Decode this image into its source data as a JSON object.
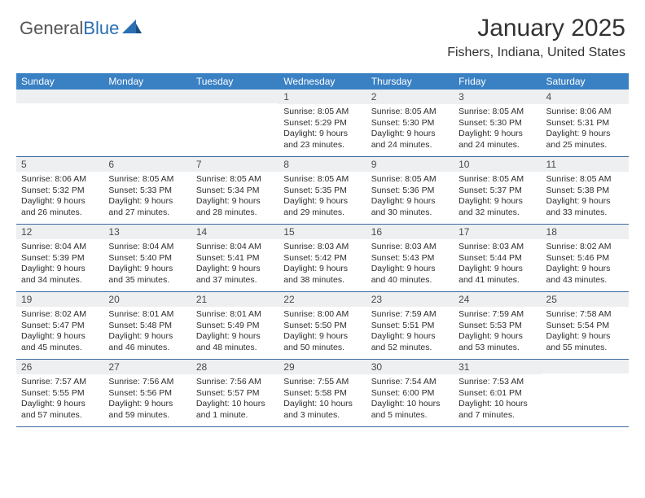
{
  "logo": {
    "text1": "General",
    "text2": "Blue"
  },
  "title": "January 2025",
  "location": "Fishers, Indiana, United States",
  "colors": {
    "header_bg": "#3a81c4",
    "header_text": "#ffffff",
    "daynum_bg": "#edeff0",
    "border": "#3a6a9e",
    "logo_gray": "#555555",
    "logo_blue": "#2b6fb3",
    "title_color": "#323232",
    "text": "#2e2e2e"
  },
  "daynames": [
    "Sunday",
    "Monday",
    "Tuesday",
    "Wednesday",
    "Thursday",
    "Friday",
    "Saturday"
  ],
  "weeks": [
    [
      {
        "n": "",
        "sr": "",
        "ss": "",
        "dl": ""
      },
      {
        "n": "",
        "sr": "",
        "ss": "",
        "dl": ""
      },
      {
        "n": "",
        "sr": "",
        "ss": "",
        "dl": ""
      },
      {
        "n": "1",
        "sr": "8:05 AM",
        "ss": "5:29 PM",
        "dl": "9 hours and 23 minutes."
      },
      {
        "n": "2",
        "sr": "8:05 AM",
        "ss": "5:30 PM",
        "dl": "9 hours and 24 minutes."
      },
      {
        "n": "3",
        "sr": "8:05 AM",
        "ss": "5:30 PM",
        "dl": "9 hours and 24 minutes."
      },
      {
        "n": "4",
        "sr": "8:06 AM",
        "ss": "5:31 PM",
        "dl": "9 hours and 25 minutes."
      }
    ],
    [
      {
        "n": "5",
        "sr": "8:06 AM",
        "ss": "5:32 PM",
        "dl": "9 hours and 26 minutes."
      },
      {
        "n": "6",
        "sr": "8:05 AM",
        "ss": "5:33 PM",
        "dl": "9 hours and 27 minutes."
      },
      {
        "n": "7",
        "sr": "8:05 AM",
        "ss": "5:34 PM",
        "dl": "9 hours and 28 minutes."
      },
      {
        "n": "8",
        "sr": "8:05 AM",
        "ss": "5:35 PM",
        "dl": "9 hours and 29 minutes."
      },
      {
        "n": "9",
        "sr": "8:05 AM",
        "ss": "5:36 PM",
        "dl": "9 hours and 30 minutes."
      },
      {
        "n": "10",
        "sr": "8:05 AM",
        "ss": "5:37 PM",
        "dl": "9 hours and 32 minutes."
      },
      {
        "n": "11",
        "sr": "8:05 AM",
        "ss": "5:38 PM",
        "dl": "9 hours and 33 minutes."
      }
    ],
    [
      {
        "n": "12",
        "sr": "8:04 AM",
        "ss": "5:39 PM",
        "dl": "9 hours and 34 minutes."
      },
      {
        "n": "13",
        "sr": "8:04 AM",
        "ss": "5:40 PM",
        "dl": "9 hours and 35 minutes."
      },
      {
        "n": "14",
        "sr": "8:04 AM",
        "ss": "5:41 PM",
        "dl": "9 hours and 37 minutes."
      },
      {
        "n": "15",
        "sr": "8:03 AM",
        "ss": "5:42 PM",
        "dl": "9 hours and 38 minutes."
      },
      {
        "n": "16",
        "sr": "8:03 AM",
        "ss": "5:43 PM",
        "dl": "9 hours and 40 minutes."
      },
      {
        "n": "17",
        "sr": "8:03 AM",
        "ss": "5:44 PM",
        "dl": "9 hours and 41 minutes."
      },
      {
        "n": "18",
        "sr": "8:02 AM",
        "ss": "5:46 PM",
        "dl": "9 hours and 43 minutes."
      }
    ],
    [
      {
        "n": "19",
        "sr": "8:02 AM",
        "ss": "5:47 PM",
        "dl": "9 hours and 45 minutes."
      },
      {
        "n": "20",
        "sr": "8:01 AM",
        "ss": "5:48 PM",
        "dl": "9 hours and 46 minutes."
      },
      {
        "n": "21",
        "sr": "8:01 AM",
        "ss": "5:49 PM",
        "dl": "9 hours and 48 minutes."
      },
      {
        "n": "22",
        "sr": "8:00 AM",
        "ss": "5:50 PM",
        "dl": "9 hours and 50 minutes."
      },
      {
        "n": "23",
        "sr": "7:59 AM",
        "ss": "5:51 PM",
        "dl": "9 hours and 52 minutes."
      },
      {
        "n": "24",
        "sr": "7:59 AM",
        "ss": "5:53 PM",
        "dl": "9 hours and 53 minutes."
      },
      {
        "n": "25",
        "sr": "7:58 AM",
        "ss": "5:54 PM",
        "dl": "9 hours and 55 minutes."
      }
    ],
    [
      {
        "n": "26",
        "sr": "7:57 AM",
        "ss": "5:55 PM",
        "dl": "9 hours and 57 minutes."
      },
      {
        "n": "27",
        "sr": "7:56 AM",
        "ss": "5:56 PM",
        "dl": "9 hours and 59 minutes."
      },
      {
        "n": "28",
        "sr": "7:56 AM",
        "ss": "5:57 PM",
        "dl": "10 hours and 1 minute."
      },
      {
        "n": "29",
        "sr": "7:55 AM",
        "ss": "5:58 PM",
        "dl": "10 hours and 3 minutes."
      },
      {
        "n": "30",
        "sr": "7:54 AM",
        "ss": "6:00 PM",
        "dl": "10 hours and 5 minutes."
      },
      {
        "n": "31",
        "sr": "7:53 AM",
        "ss": "6:01 PM",
        "dl": "10 hours and 7 minutes."
      },
      {
        "n": "",
        "sr": "",
        "ss": "",
        "dl": ""
      }
    ]
  ],
  "labels": {
    "sunrise": "Sunrise: ",
    "sunset": "Sunset: ",
    "daylight": "Daylight: "
  }
}
